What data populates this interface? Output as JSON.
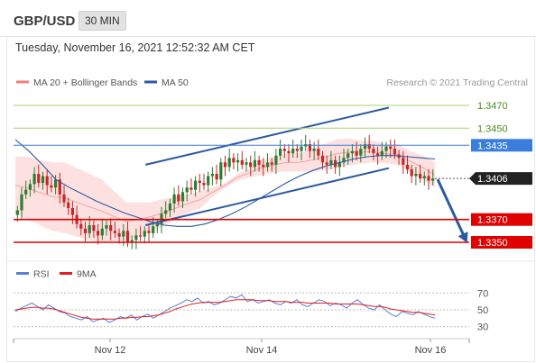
{
  "header": {
    "symbol": "GBP/USD",
    "timeframe": "30 MIN"
  },
  "datetime": "Tuesday, November 16, 2021 12:52:32 AM CET",
  "legend": {
    "items": [
      {
        "label": "MA 20 + Bollinger Bands",
        "color": "#f08080"
      },
      {
        "label": "MA 50",
        "color": "#2c5aa0"
      }
    ],
    "credit": "Research © 2021 Trading Central"
  },
  "rsi_legend": {
    "items": [
      {
        "label": "RSI",
        "color": "#5b7fd6"
      },
      {
        "label": "9MA",
        "color": "#e02020"
      }
    ]
  },
  "colors": {
    "up_candle": "#2e7d32",
    "down_candle": "#c62828",
    "bollinger_fill": "#fde0e0",
    "ma50": "#2c5aa0",
    "channel": "#2c5aa0",
    "resistance": "#8bc34a",
    "pivot": "#3b7ddd",
    "support": "#e00000"
  },
  "chart_data": [
    {
      "type": "candlestick",
      "x_axis": {
        "ticks": [
          "Nov 12",
          "Nov 14",
          "Nov 16"
        ]
      },
      "y_axis": {
        "range": [
          1.3335,
          1.3485
        ],
        "position": "right"
      },
      "levels": [
        {
          "label": "1.3470",
          "value": 1.347,
          "kind": "resistance",
          "style": "text"
        },
        {
          "label": "1.3450",
          "value": 1.345,
          "kind": "resistance",
          "style": "text"
        },
        {
          "label": "1.3435",
          "value": 1.3435,
          "kind": "pivot",
          "style": "badge"
        },
        {
          "label": "1.3406",
          "value": 1.3406,
          "kind": "last",
          "style": "tag"
        },
        {
          "label": "1.3370",
          "value": 1.337,
          "kind": "support",
          "style": "badge"
        },
        {
          "label": "1.3350",
          "value": 1.335,
          "kind": "support",
          "style": "badge"
        }
      ],
      "close_series": [
        1.3378,
        1.3392,
        1.3396,
        1.3401,
        1.341,
        1.3402,
        1.3408,
        1.34,
        1.3398,
        1.3405,
        1.3392,
        1.3385,
        1.338,
        1.3374,
        1.3366,
        1.3362,
        1.3358,
        1.3365,
        1.336,
        1.3356,
        1.3362,
        1.3365,
        1.336,
        1.3358,
        1.3355,
        1.336,
        1.335,
        1.3352,
        1.3356,
        1.3355,
        1.336,
        1.3358,
        1.3364,
        1.3366,
        1.3375,
        1.3378,
        1.3384,
        1.3392,
        1.3386,
        1.3394,
        1.3398,
        1.3396,
        1.3404,
        1.3402,
        1.34,
        1.3408,
        1.341,
        1.3405,
        1.342,
        1.3416,
        1.3424,
        1.342,
        1.3422,
        1.3418,
        1.342,
        1.3416,
        1.3422,
        1.3418,
        1.3416,
        1.342,
        1.3418,
        1.3426,
        1.3432,
        1.343,
        1.3428,
        1.3432,
        1.343,
        1.3434,
        1.3436,
        1.343,
        1.3432,
        1.3426,
        1.342,
        1.3418,
        1.3422,
        1.3416,
        1.342,
        1.3424,
        1.3428,
        1.343,
        1.3426,
        1.3432,
        1.3436,
        1.3432,
        1.3428,
        1.3426,
        1.343,
        1.3434,
        1.3432,
        1.3427,
        1.3424,
        1.3418,
        1.3414,
        1.3408,
        1.341,
        1.3406,
        1.3408,
        1.3404,
        1.3406
      ],
      "bollinger_upper": [
        1.3425,
        1.3425,
        1.3422,
        1.342,
        1.342,
        1.3415,
        1.341,
        1.3405,
        1.3395,
        1.3385,
        1.3385,
        1.3385,
        1.3388,
        1.339,
        1.3392,
        1.3395,
        1.3398,
        1.3402,
        1.341,
        1.3415,
        1.3422,
        1.3425,
        1.3428,
        1.3428,
        1.3432,
        1.3436,
        1.344,
        1.3441,
        1.3439,
        1.3439,
        1.3436,
        1.3436,
        1.343,
        1.3426,
        1.342
      ],
      "bollinger_lower": [
        1.3375,
        1.337,
        1.3365,
        1.336,
        1.3358,
        1.3355,
        1.3352,
        1.335,
        1.335,
        1.3352,
        1.3355,
        1.336,
        1.3364,
        1.337,
        1.3376,
        1.338,
        1.339,
        1.3398,
        1.3404,
        1.3407,
        1.3409,
        1.3411,
        1.3412,
        1.3412,
        1.3412,
        1.3413,
        1.3415,
        1.3417,
        1.3419,
        1.342,
        1.3419,
        1.3418,
        1.3412,
        1.3405,
        1.3398
      ],
      "ma50": [
        1.344,
        1.343,
        1.3418,
        1.3405,
        1.3398,
        1.3392,
        1.3386,
        1.3381,
        1.3376,
        1.3372,
        1.3368,
        1.3365,
        1.3364,
        1.3364,
        1.3366,
        1.337,
        1.3375,
        1.3381,
        1.3388,
        1.3395,
        1.3402,
        1.3408,
        1.3413,
        1.3417,
        1.342,
        1.3423,
        1.3425,
        1.3426,
        1.3426,
        1.3425,
        1.3424,
        1.3423
      ],
      "channel": {
        "upper": [
          {
            "x_frac": 0.31,
            "value": 1.3418
          },
          {
            "x_frac": 0.89,
            "value": 1.3468
          }
        ],
        "lower": [
          {
            "x_frac": 0.31,
            "value": 1.3365
          },
          {
            "x_frac": 0.89,
            "value": 1.3415
          }
        ]
      },
      "projection_arrow": {
        "from_value": 1.3406,
        "to_value": 1.335
      }
    },
    {
      "type": "line",
      "name": "RSI",
      "y_axis": {
        "range": [
          20,
          80
        ],
        "ticks": [
          "70",
          "50",
          "30"
        ],
        "position": "right"
      },
      "series": [
        {
          "name": "RSI",
          "color": "#5b7fd6",
          "values": [
            48,
            52,
            55,
            58,
            54,
            50,
            56,
            52,
            48,
            46,
            42,
            40,
            38,
            42,
            36,
            38,
            40,
            35,
            38,
            42,
            40,
            44,
            38,
            42,
            45,
            40,
            44,
            48,
            52,
            55,
            58,
            62,
            60,
            64,
            58,
            60,
            56,
            58,
            62,
            66,
            64,
            68,
            60,
            62,
            58,
            60,
            62,
            58,
            56,
            60,
            58,
            62,
            56,
            54,
            58,
            62,
            60,
            55,
            58,
            56,
            52,
            58,
            62,
            56,
            52,
            50,
            56,
            50,
            45,
            42,
            48,
            46,
            44,
            48,
            45,
            42,
            40
          ]
        },
        {
          "name": "9MA",
          "color": "#e02020",
          "values": [
            50,
            51,
            52,
            53,
            53,
            52,
            52,
            51,
            49,
            47,
            45,
            43,
            41,
            40,
            39,
            39,
            39,
            39,
            39,
            40,
            40,
            41,
            41,
            42,
            42,
            43,
            44,
            46,
            48,
            51,
            53,
            55,
            57,
            58,
            59,
            59,
            59,
            59,
            60,
            61,
            62,
            62,
            62,
            62,
            61,
            61,
            61,
            60,
            60,
            60,
            59,
            59,
            59,
            58,
            58,
            58,
            58,
            58,
            57,
            57,
            57,
            57,
            57,
            56,
            55,
            54,
            54,
            53,
            51,
            50,
            49,
            48,
            47,
            47,
            46,
            45,
            44
          ]
        }
      ]
    }
  ]
}
